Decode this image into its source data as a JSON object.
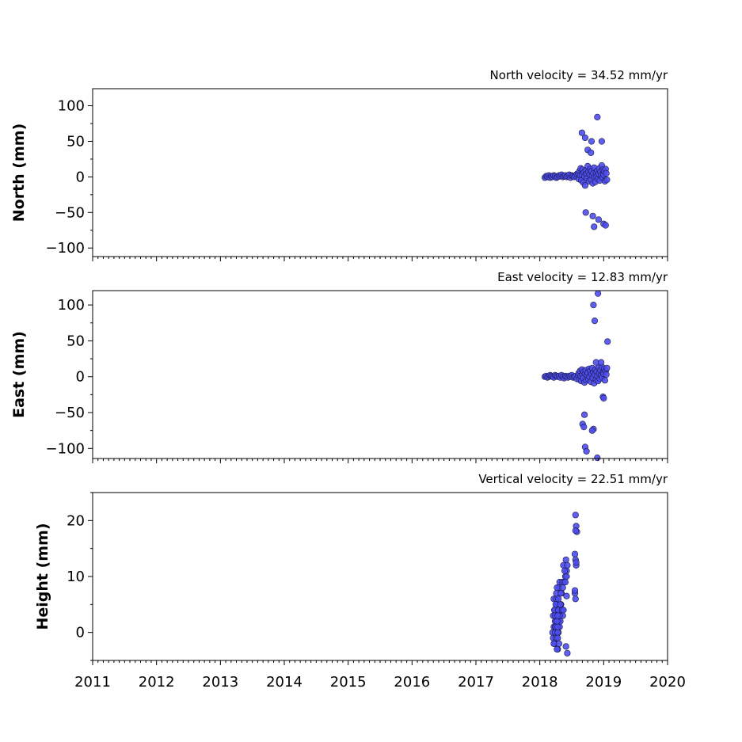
{
  "chart_data": [
    {
      "type": "scatter",
      "title": "North velocity = 34.52 mm/yr",
      "ylabel": "North (mm)",
      "xlim": [
        2011,
        2020
      ],
      "ylim": [
        -112,
        124
      ],
      "yticks": [
        100,
        50,
        0,
        -50,
        -100
      ],
      "ytick_labels": [
        "100",
        "50",
        "0",
        "−50",
        "−100"
      ],
      "color": "#4c4cf0",
      "series": [
        {
          "x": [
            2018.08,
            2018.1,
            2018.12,
            2018.14,
            2018.16,
            2018.18,
            2018.2,
            2018.22,
            2018.24,
            2018.26,
            2018.28,
            2018.3,
            2018.32,
            2018.34,
            2018.36,
            2018.38,
            2018.4,
            2018.42,
            2018.44,
            2018.46,
            2018.48,
            2018.5,
            2018.52,
            2018.54,
            2018.56,
            2018.58,
            2018.6,
            2018.61,
            2018.62,
            2018.63,
            2018.64,
            2018.65,
            2018.66,
            2018.67,
            2018.68,
            2018.69,
            2018.7,
            2018.71,
            2018.72,
            2018.73,
            2018.74,
            2018.75,
            2018.76,
            2018.77,
            2018.78,
            2018.79,
            2018.8,
            2018.81,
            2018.82,
            2018.83,
            2018.84,
            2018.85,
            2018.86,
            2018.87,
            2018.88,
            2018.89,
            2018.9,
            2018.91,
            2018.92,
            2018.93,
            2018.94,
            2018.95,
            2018.96,
            2018.97,
            2018.98,
            2018.99,
            2019.0,
            2019.01,
            2019.02,
            2019.03,
            2019.04,
            2019.05,
            2018.66,
            2018.71,
            2018.75,
            2018.8,
            2018.81,
            2018.9,
            2018.97,
            2018.72,
            2018.83,
            2018.85,
            2018.92,
            2019.0,
            2019.03
          ],
          "y": [
            -1,
            1,
            0,
            2,
            -1,
            1,
            0,
            2,
            1,
            -1,
            0,
            2,
            1,
            3,
            0,
            1,
            2,
            0,
            1,
            3,
            -1,
            2,
            1,
            0,
            2,
            4,
            5,
            -3,
            8,
            2,
            12,
            -5,
            3,
            10,
            -8,
            6,
            1,
            -12,
            9,
            4,
            -2,
            15,
            7,
            -6,
            3,
            11,
            -4,
            8,
            2,
            -9,
            5,
            13,
            0,
            -7,
            6,
            1,
            9,
            -3,
            4,
            12,
            -5,
            7,
            2,
            16,
            -1,
            10,
            3,
            8,
            -6,
            11,
            5,
            -4,
            62,
            55,
            38,
            34,
            50,
            84,
            50,
            -50,
            -55,
            -70,
            -60,
            -66,
            -68
          ]
        }
      ]
    },
    {
      "type": "scatter",
      "title": "East velocity = 12.83 mm/yr",
      "ylabel": "East (mm)",
      "xlim": [
        2011,
        2020
      ],
      "ylim": [
        -114,
        120
      ],
      "yticks": [
        100,
        50,
        0,
        -50,
        -100
      ],
      "ytick_labels": [
        "100",
        "50",
        "0",
        "−50",
        "−100"
      ],
      "color": "#4c4cf0",
      "series": [
        {
          "x": [
            2018.08,
            2018.1,
            2018.12,
            2018.14,
            2018.16,
            2018.18,
            2018.2,
            2018.22,
            2018.24,
            2018.26,
            2018.28,
            2018.3,
            2018.32,
            2018.34,
            2018.36,
            2018.38,
            2018.4,
            2018.42,
            2018.44,
            2018.46,
            2018.48,
            2018.5,
            2018.52,
            2018.54,
            2018.56,
            2018.58,
            2018.6,
            2018.61,
            2018.62,
            2018.63,
            2018.64,
            2018.65,
            2018.66,
            2018.67,
            2018.68,
            2018.69,
            2018.7,
            2018.71,
            2018.72,
            2018.73,
            2018.74,
            2018.75,
            2018.76,
            2018.77,
            2018.78,
            2018.79,
            2018.8,
            2018.81,
            2018.82,
            2018.83,
            2018.84,
            2018.85,
            2018.86,
            2018.87,
            2018.88,
            2018.89,
            2018.9,
            2018.91,
            2018.92,
            2018.93,
            2018.94,
            2018.95,
            2018.96,
            2018.97,
            2018.98,
            2018.99,
            2019.0,
            2019.01,
            2019.02,
            2019.03,
            2019.04,
            2019.05,
            2018.84,
            2018.91,
            2018.86,
            2018.88,
            2018.96,
            2019.06,
            2018.99,
            2019.0,
            2018.7,
            2018.67,
            2018.69,
            2018.84,
            2018.82,
            2018.71,
            2018.73,
            2018.9
          ],
          "y": [
            0,
            1,
            -1,
            0,
            2,
            1,
            0,
            -1,
            2,
            1,
            0,
            1,
            -1,
            2,
            0,
            -2,
            1,
            0,
            -1,
            1,
            0,
            2,
            -1,
            0,
            1,
            -3,
            2,
            5,
            -4,
            8,
            1,
            -6,
            10,
            3,
            -2,
            7,
            -8,
            4,
            9,
            -5,
            2,
            6,
            -3,
            11,
            0,
            8,
            -7,
            4,
            12,
            -2,
            6,
            -9,
            3,
            10,
            -4,
            7,
            1,
            -6,
            13,
            5,
            -3,
            9,
            2,
            14,
            -1,
            6,
            4,
            11,
            -5,
            8,
            3,
            12,
            100,
            116,
            78,
            20,
            20,
            49,
            -28,
            -30,
            -53,
            -66,
            -70,
            -73,
            -75,
            -98,
            -104,
            -113
          ]
        }
      ]
    },
    {
      "type": "scatter",
      "title": "Vertical velocity = 22.51 mm/yr",
      "ylabel": "Height (mm)",
      "xlim": [
        2011,
        2020
      ],
      "ylim": [
        -5,
        25
      ],
      "yticks": [
        20,
        10,
        0
      ],
      "ytick_labels": [
        "20",
        "10",
        "0"
      ],
      "color": "#4c4cf0",
      "series": [
        {
          "x": [
            2018.2,
            2018.21,
            2018.22,
            2018.23,
            2018.24,
            2018.25,
            2018.26,
            2018.27,
            2018.28,
            2018.29,
            2018.3,
            2018.21,
            2018.22,
            2018.23,
            2018.24,
            2018.25,
            2018.26,
            2018.27,
            2018.28,
            2018.29,
            2018.3,
            2018.31,
            2018.22,
            2018.24,
            2018.26,
            2018.28,
            2018.3,
            2018.32,
            2018.23,
            2018.25,
            2018.27,
            2018.29,
            2018.31,
            2018.33,
            2018.24,
            2018.26,
            2018.28,
            2018.3,
            2018.32,
            2018.34,
            2018.36,
            2018.25,
            2018.27,
            2018.29,
            2018.31,
            2018.33,
            2018.35,
            2018.37,
            2018.26,
            2018.28,
            2018.3,
            2018.32,
            2018.34,
            2018.27,
            2018.29,
            2018.31,
            2018.33,
            2018.35,
            2018.36,
            2018.38,
            2018.4,
            2018.42,
            2018.37,
            2018.39,
            2018.41,
            2018.43,
            2018.4,
            2018.42,
            2018.27,
            2018.41,
            2018.43,
            2018.56,
            2018.57,
            2018.58,
            2018.55,
            2018.56,
            2018.57,
            2018.55,
            2018.56,
            2018.42,
            2018.56,
            2018.57,
            2018.55
          ],
          "y": [
            0,
            -1,
            1,
            -2,
            0,
            2,
            -1,
            1,
            -3,
            0,
            2,
            3,
            -2,
            4,
            1,
            -1,
            2,
            5,
            0,
            3,
            -2,
            1,
            6,
            2,
            4,
            -1,
            3,
            5,
            4,
            1,
            3,
            2,
            4,
            5,
            3,
            6,
            1,
            4,
            2,
            4,
            3,
            5,
            2,
            4,
            3,
            5,
            4,
            4,
            7,
            3,
            8,
            5,
            7,
            8,
            6,
            9,
            7,
            9,
            8,
            9,
            10,
            11,
            12,
            11,
            13,
            12,
            9,
            10,
            -3,
            -2.5,
            -3.7,
            21,
            19,
            18,
            14,
            13,
            12,
            7,
            6,
            6.5,
            18.2,
            12.5,
            7.5
          ]
        }
      ]
    }
  ],
  "x_axis": {
    "ticks": [
      2011,
      2012,
      2013,
      2014,
      2015,
      2016,
      2017,
      2018,
      2019,
      2020
    ],
    "tick_labels": [
      "2011",
      "2012",
      "2013",
      "2014",
      "2015",
      "2016",
      "2017",
      "2018",
      "2019",
      "2020"
    ]
  }
}
